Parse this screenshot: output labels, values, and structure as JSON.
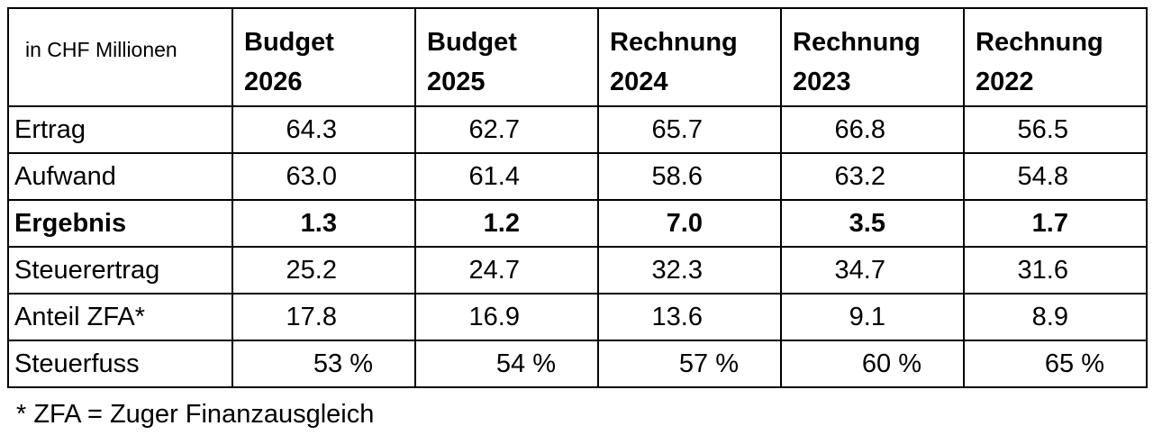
{
  "chart_data": {
    "type": "table",
    "title": "",
    "unit_label": "in CHF Millionen",
    "columns": [
      "Budget 2026",
      "Budget 2025",
      "Rechnung 2024",
      "Rechnung 2023",
      "Rechnung 2022"
    ],
    "rows": [
      {
        "label": "Ertrag",
        "values": [
          64.3,
          62.7,
          65.7,
          66.8,
          56.5
        ]
      },
      {
        "label": "Aufwand",
        "values": [
          63.0,
          61.4,
          58.6,
          63.2,
          54.8
        ]
      },
      {
        "label": "Ergebnis",
        "values": [
          1.3,
          1.2,
          7.0,
          3.5,
          1.7
        ],
        "emphasis": "bold"
      },
      {
        "label": "Steuerertrag",
        "values": [
          25.2,
          24.7,
          32.3,
          34.7,
          31.6
        ]
      },
      {
        "label": "Anteil ZFA*",
        "values": [
          17.8,
          16.9,
          13.6,
          9.1,
          8.9
        ]
      },
      {
        "label": "Steuerfuss",
        "values": [
          "53 %",
          "54 %",
          "57 %",
          "60 %",
          "65 %"
        ]
      }
    ],
    "footnote": "* ZFA = Zuger Finanzausgleich",
    "layout_hints": {
      "grid": "full-borders",
      "emphasized_row": "Ergebnis",
      "percent_row": "Steuerfuss"
    }
  },
  "table": {
    "unit_label": "in CHF Millionen",
    "headers": [
      {
        "line1": "Budget",
        "line2": "2026"
      },
      {
        "line1": "Budget",
        "line2": "2025"
      },
      {
        "line1": "Rechnung",
        "line2": "2024"
      },
      {
        "line1": "Rechnung",
        "line2": "2023"
      },
      {
        "line1": "Rechnung",
        "line2": "2022"
      }
    ],
    "rows": [
      {
        "label": "Ertrag",
        "values": [
          "64.3",
          "62.7",
          "65.7",
          "66.8",
          "56.5"
        ]
      },
      {
        "label": "Aufwand",
        "values": [
          "63.0",
          "61.4",
          "58.6",
          "63.2",
          "54.8"
        ]
      },
      {
        "label": "Ergebnis",
        "values": [
          "1.3",
          "1.2",
          "7.0",
          "3.5",
          "1.7"
        ]
      },
      {
        "label": "Steuerertrag",
        "values": [
          "25.2",
          "24.7",
          "32.3",
          "34.7",
          "31.6"
        ]
      },
      {
        "label": "Anteil ZFA*",
        "values": [
          "17.8",
          "16.9",
          "13.6",
          "9.1",
          "8.9"
        ]
      },
      {
        "label": "Steuerfuss",
        "values": [
          "53 %",
          "54 %",
          "57 %",
          "60 %",
          "65 %"
        ]
      }
    ]
  },
  "footnote": {
    "text": "* ZFA = Zuger Finanzausgleich"
  },
  "colors": {
    "text": "#000000",
    "border": "#000000",
    "background": "#ffffff"
  }
}
